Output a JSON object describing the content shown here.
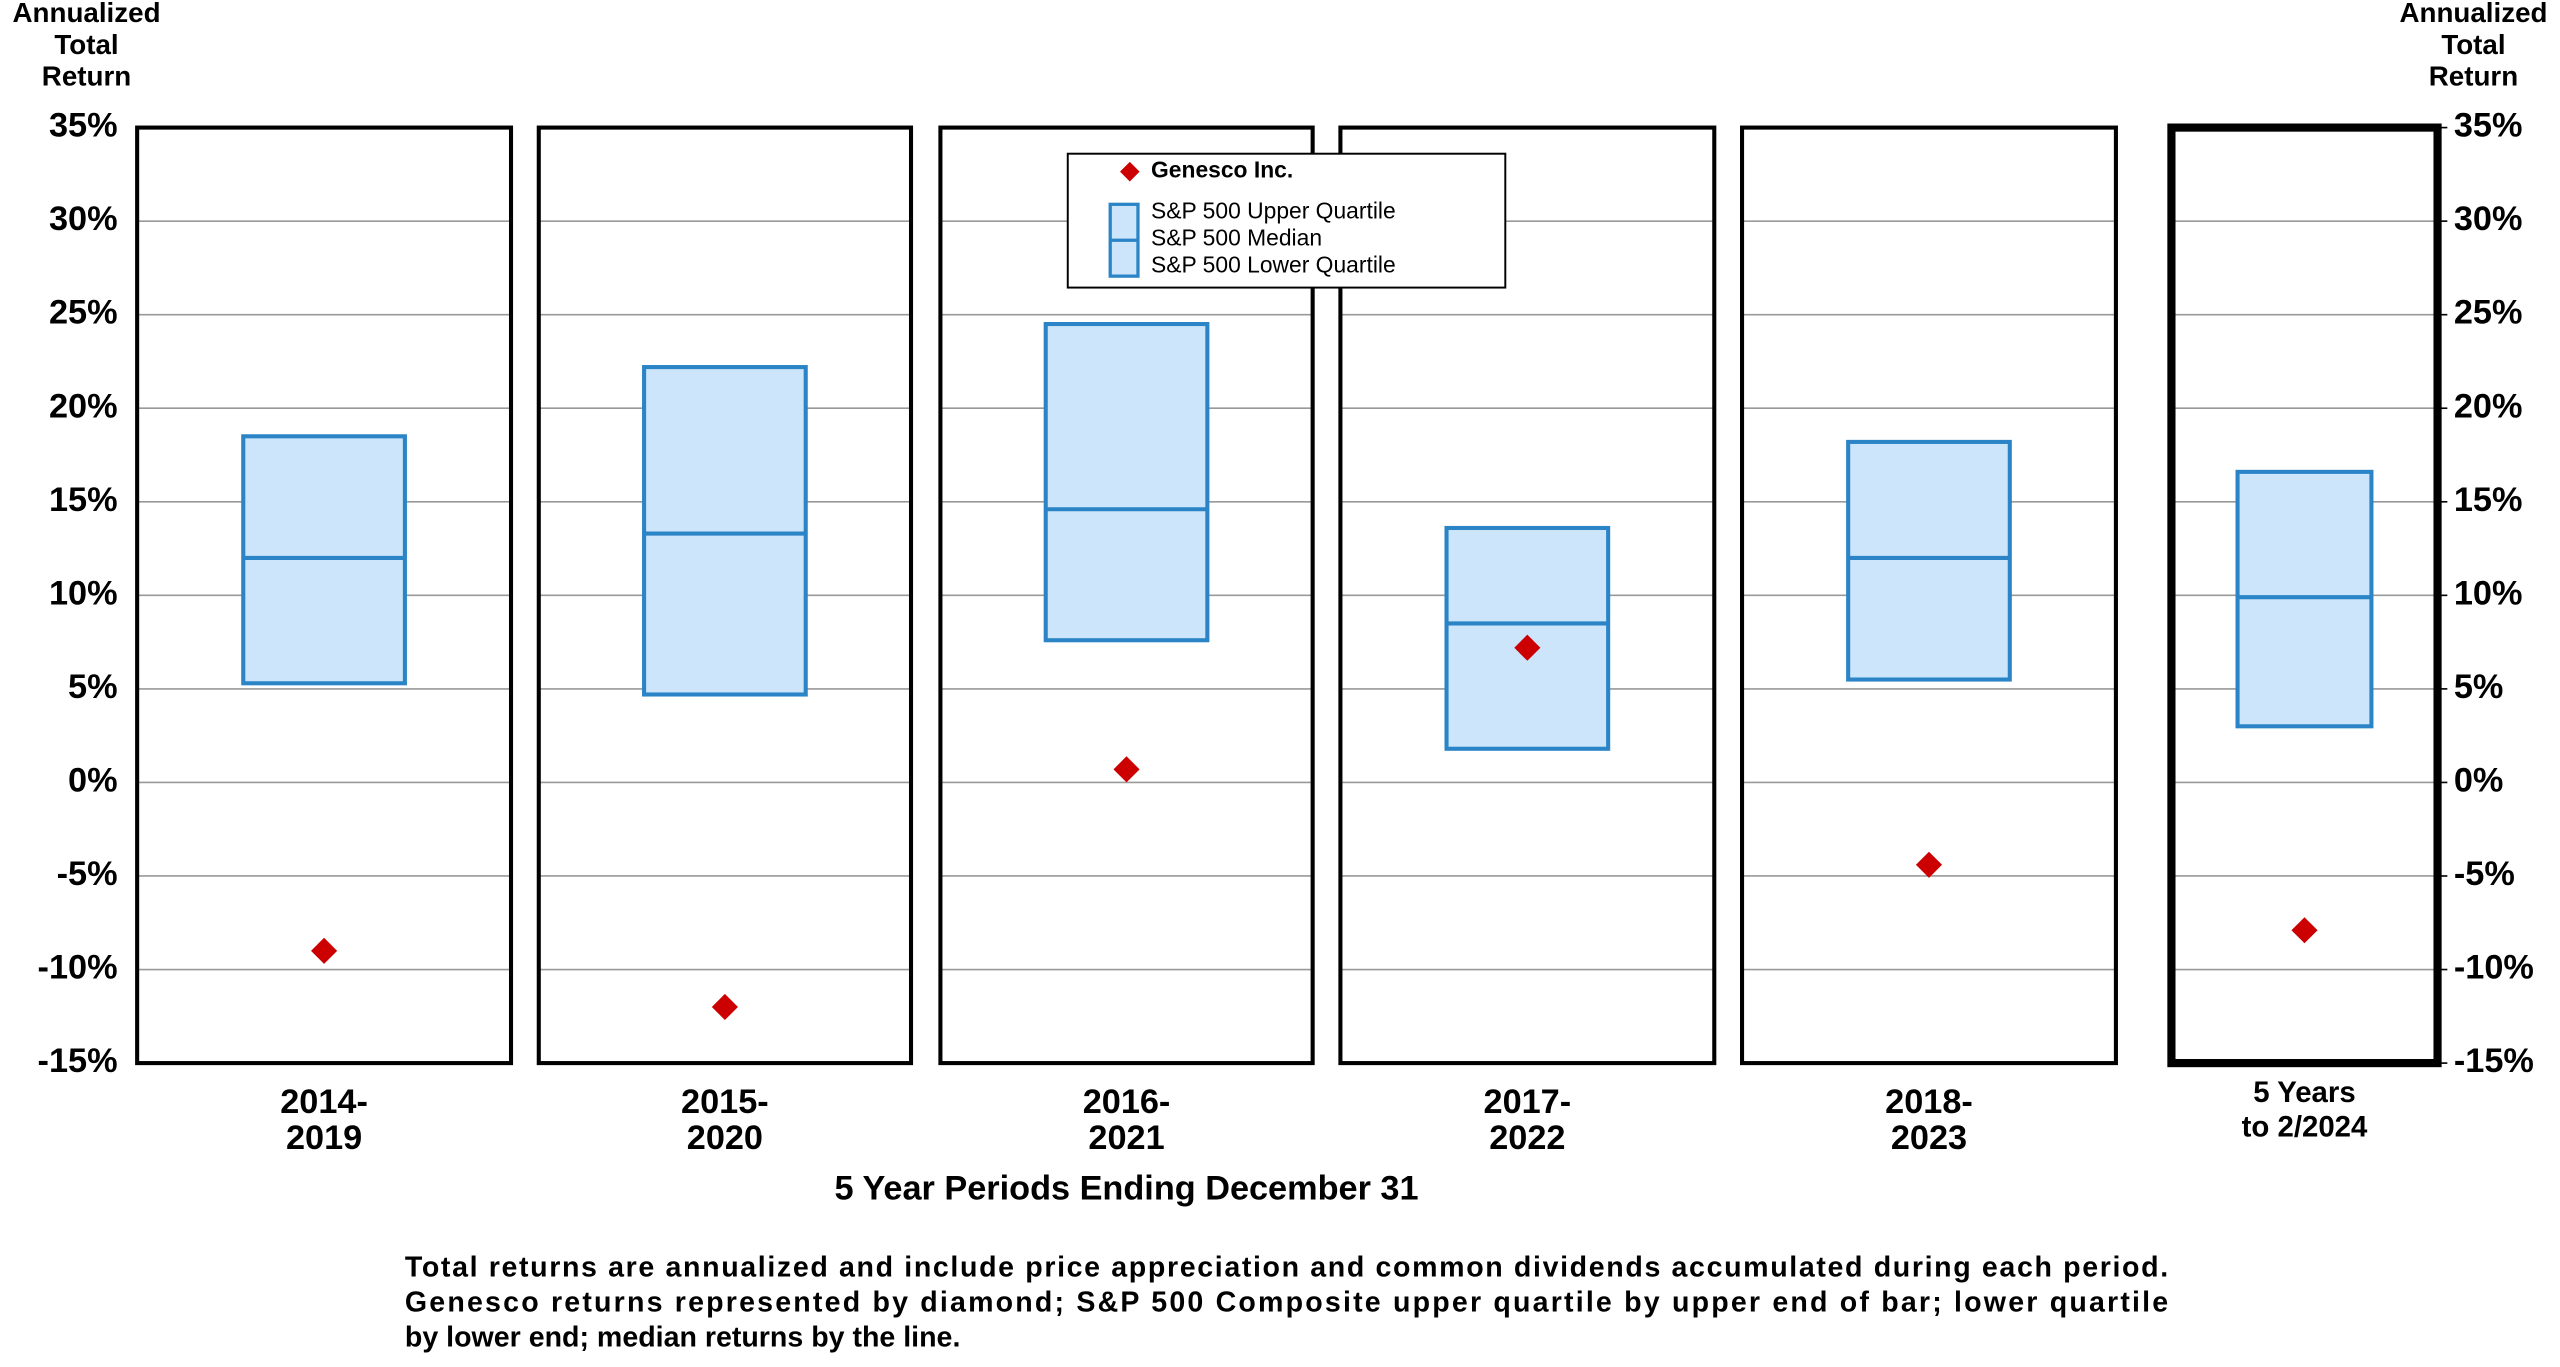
{
  "chart_data": {
    "type": "quartile-box",
    "y_label": "Annualized\nTotal\nReturn",
    "y2_label": "Annualized\nTotal\nReturn",
    "x_label": "5 Year Periods Ending December 31",
    "categories": [
      "2014-\n2019",
      "2015-\n2020",
      "2016-\n2021",
      "2017-\n2022",
      "2018-\n2023",
      "5 Years\nto  2/2024"
    ],
    "series": [
      {
        "name": "S&P 500 Upper Quartile",
        "color": "#2a84c6",
        "values": [
          18.5,
          22.2,
          24.5,
          13.6,
          18.2,
          16.6
        ]
      },
      {
        "name": "S&P 500 Median",
        "color": "#2a84c6",
        "values": [
          12.0,
          13.3,
          14.6,
          8.5,
          12.0,
          9.9
        ]
      },
      {
        "name": "S&P 500 Lower Quartile",
        "color": "#2a84c6",
        "values": [
          5.3,
          4.7,
          7.6,
          1.8,
          5.5,
          3.0
        ]
      },
      {
        "name": "Genesco Inc.",
        "color": "#cc0000",
        "values": [
          -9.0,
          -12.0,
          0.7,
          7.2,
          -4.4,
          -7.9
        ]
      }
    ],
    "box_fill": "#cce5fa",
    "ylim": [
      -15,
      35
    ],
    "yticks": [
      {
        "value": 35,
        "label": "35%"
      },
      {
        "value": 30,
        "label": "30%"
      },
      {
        "value": 25,
        "label": "25%"
      },
      {
        "value": 20,
        "label": "20%"
      },
      {
        "value": 15,
        "label": "15%"
      },
      {
        "value": 10,
        "label": "10%"
      },
      {
        "value": 5,
        "label": "5%"
      },
      {
        "value": 0,
        "label": "0%"
      },
      {
        "value": -5,
        "label": "-5%"
      },
      {
        "value": -10,
        "label": "-10%"
      },
      {
        "value": -15,
        "label": "-15%"
      }
    ],
    "y2lim": [
      -15,
      35
    ],
    "y2ticks": [
      {
        "value": 35,
        "label": "35%"
      },
      {
        "value": 30,
        "label": "30%"
      },
      {
        "value": 25,
        "label": "25%"
      },
      {
        "value": 20,
        "label": "20%"
      },
      {
        "value": 15,
        "label": "15%"
      },
      {
        "value": 10,
        "label": "10%"
      },
      {
        "value": 5,
        "label": "5%"
      },
      {
        "value": 0,
        "label": "0%"
      },
      {
        "value": -5,
        "label": "-5%"
      },
      {
        "value": -10,
        "label": "-10%"
      },
      {
        "value": -15,
        "label": "-15%"
      }
    ],
    "grid": true,
    "notes": [
      "Total returns are annualized and include price appreciation and common dividends accumulated during each period.",
      "Genesco returns represented by diamond; S&P 500 Composite upper quartile by upper end of bar; lower quartile",
      "by lower end; median returns by the line."
    ]
  }
}
